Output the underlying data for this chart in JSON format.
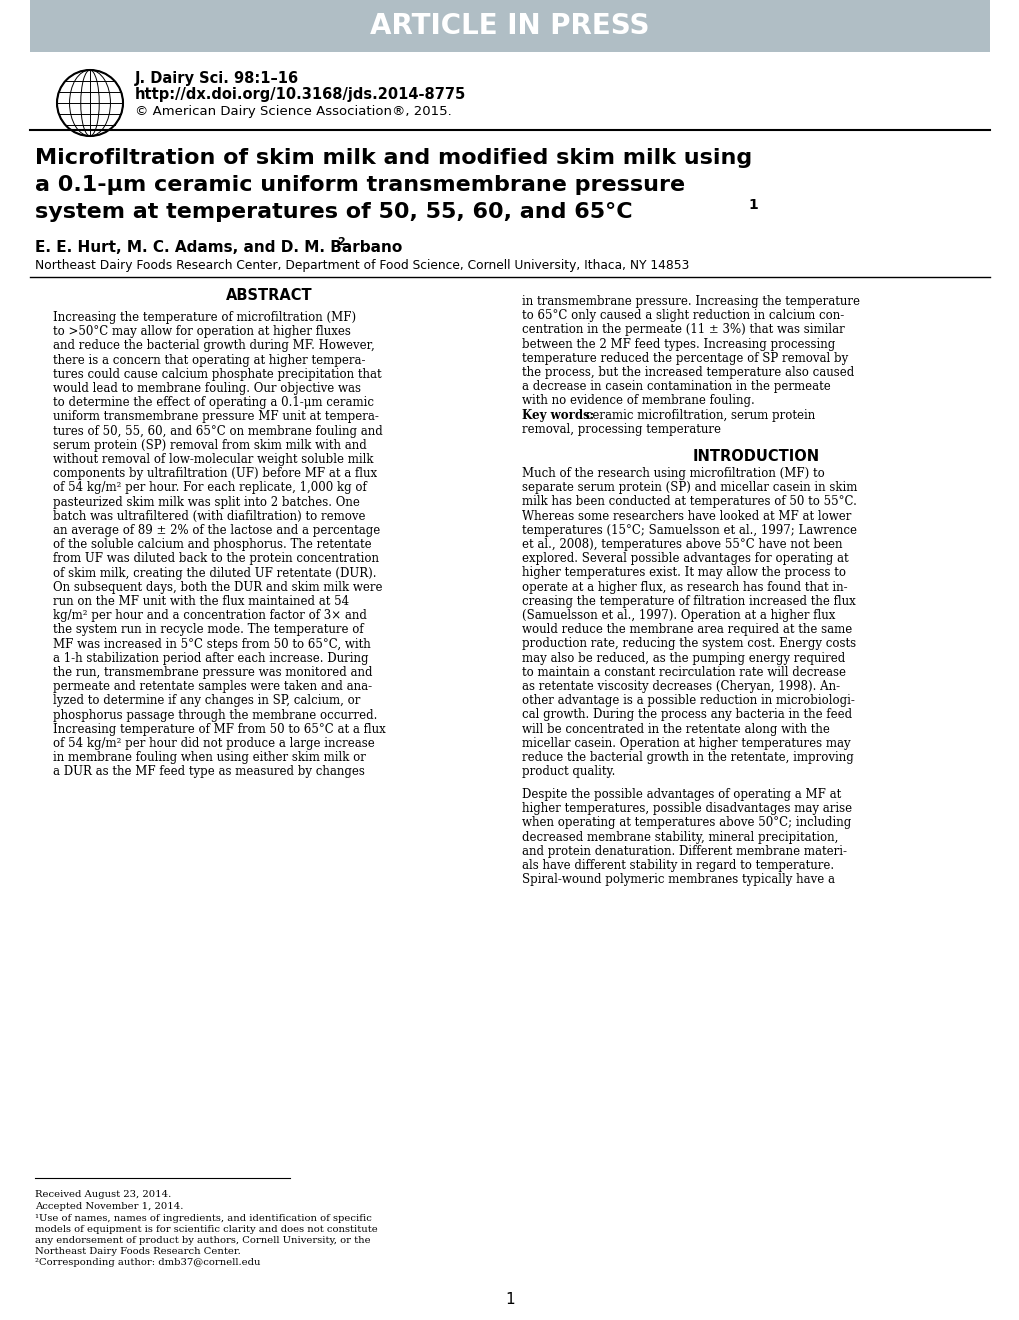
{
  "header_bg_color": "#b0bec5",
  "header_text": "ARTICLE IN PRESS",
  "header_text_color": "#ffffff",
  "journal_line1": "J. Dairy Sci. 98:1–16",
  "journal_line2": "http://dx.doi.org/10.3168/jds.2014-8775",
  "journal_line3": "© American Dairy Science Association®, 2015.",
  "title_line1": "Microfiltration of skim milk and modified skim milk using",
  "title_line2": "a 0.1-μm ceramic uniform transmembrane pressure",
  "title_line3": "system at temperatures of 50, 55, 60, and 65°C",
  "title_superscript": "1",
  "authors": "E. E. Hurt, M. C. Adams, and D. M. Barbano",
  "authors_superscript": "2",
  "affiliation": "Northeast Dairy Foods Research Center, Department of Food Science, Cornell University, Ithaca, NY 14853",
  "abstract_title": "ABSTRACT",
  "abstract_left": "Increasing the temperature of microfiltration (MF)\nto >50°C may allow for operation at higher fluxes\nand reduce the bacterial growth during MF. However,\nthere is a concern that operating at higher tempera-\ntures could cause calcium phosphate precipitation that\nwould lead to membrane fouling. Our objective was\nto determine the effect of operating a 0.1-μm ceramic\nuniform transmembrane pressure MF unit at tempera-\ntures of 50, 55, 60, and 65°C on membrane fouling and\nserum protein (SP) removal from skim milk with and\nwithout removal of low-molecular weight soluble milk\ncomponents by ultrafiltration (UF) before MF at a flux\nof 54 kg/m² per hour. For each replicate, 1,000 kg of\npasteurized skim milk was split into 2 batches. One\nbatch was ultrafiltered (with diafiltration) to remove\nan average of 89 ± 2% of the lactose and a percentage\nof the soluble calcium and phosphorus. The retentate\nfrom UF was diluted back to the protein concentration\nof skim milk, creating the diluted UF retentate (DUR).\nOn subsequent days, both the DUR and skim milk were\nrun on the MF unit with the flux maintained at 54\nkg/m² per hour and a concentration factor of 3× and\nthe system run in recycle mode. The temperature of\nMF was increased in 5°C steps from 50 to 65°C, with\na 1-h stabilization period after each increase. During\nthe run, transmembrane pressure was monitored and\npermeate and retentate samples were taken and ana-\nlyzed to determine if any changes in SP, calcium, or\nphosphorus passage through the membrane occurred.\nIncreasing temperature of MF from 50 to 65°C at a flux\nof 54 kg/m² per hour did not produce a large increase\nin membrane fouling when using either skim milk or\na DUR as the MF feed type as measured by changes",
  "abstract_right": "in transmembrane pressure. Increasing the temperature\nto 65°C only caused a slight reduction in calcium con-\ncentration in the permeate (11 ± 3%) that was similar\nbetween the 2 MF feed types. Increasing processing\ntemperature reduced the percentage of SP removal by\nthe process, but the increased temperature also caused\na decrease in casein contamination in the permeate\nwith no evidence of membrane fouling.\nKey words: ceramic microfiltration, serum protein\nremoval, processing temperature",
  "intro_title": "INTRODUCTION",
  "intro_text": "Much of the research using microfiltration (MF) to\nseparate serum protein (SP) and micellar casein in skim\nmilk has been conducted at temperatures of 50 to 55°C.\nWhereas some researchers have looked at MF at lower\ntemperatures (15°C; Samuelsson et al., 1997; Lawrence\net al., 2008), temperatures above 55°C have not been\nexplored. Several possible advantages for operating at\nhigher temperatures exist. It may allow the process to\noperate at a higher flux, as research has found that in-\ncreasing the temperature of filtration increased the flux\n(Samuelsson et al., 1997). Operation at a higher flux\nwould reduce the membrane area required at the same\nproduction rate, reducing the system cost. Energy costs\nmay also be reduced, as the pumping energy required\nto maintain a constant recirculation rate will decrease\nas retentate viscosity decreases (Cheryan, 1998). An-\nother advantage is a possible reduction in microbiologi-\ncal growth. During the process any bacteria in the feed\nwill be concentrated in the retentate along with the\nmicellar casein. Operation at higher temperatures may\nreduce the bacterial growth in the retentate, improving\nproduct quality.\n\nDespite the possible advantages of operating a MF at\nhigher temperatures, possible disadvantages may arise\nwhen operating at temperatures above 50°C; including\ndecreased membrane stability, mineral precipitation,\nand protein denaturation. Different membrane materi-\nals have different stability in regard to temperature.\nSpiral-wound polymeric membranes typically have a",
  "footnote1": "Received August 23, 2014.",
  "footnote2": "Accepted November 1, 2014.",
  "footnote3": "¹Use of names, names of ingredients, and identification of specific\nmodels of equipment is for scientific clarity and does not constitute\nany endorsement of product by authors, Cornell University, or the\nNortheast Dairy Foods Research Center.",
  "footnote4": "²Corresponding author: dmb37@cornell.edu",
  "page_number": "1",
  "bg_color": "#ffffff",
  "text_color": "#000000",
  "divider_color": "#000000"
}
